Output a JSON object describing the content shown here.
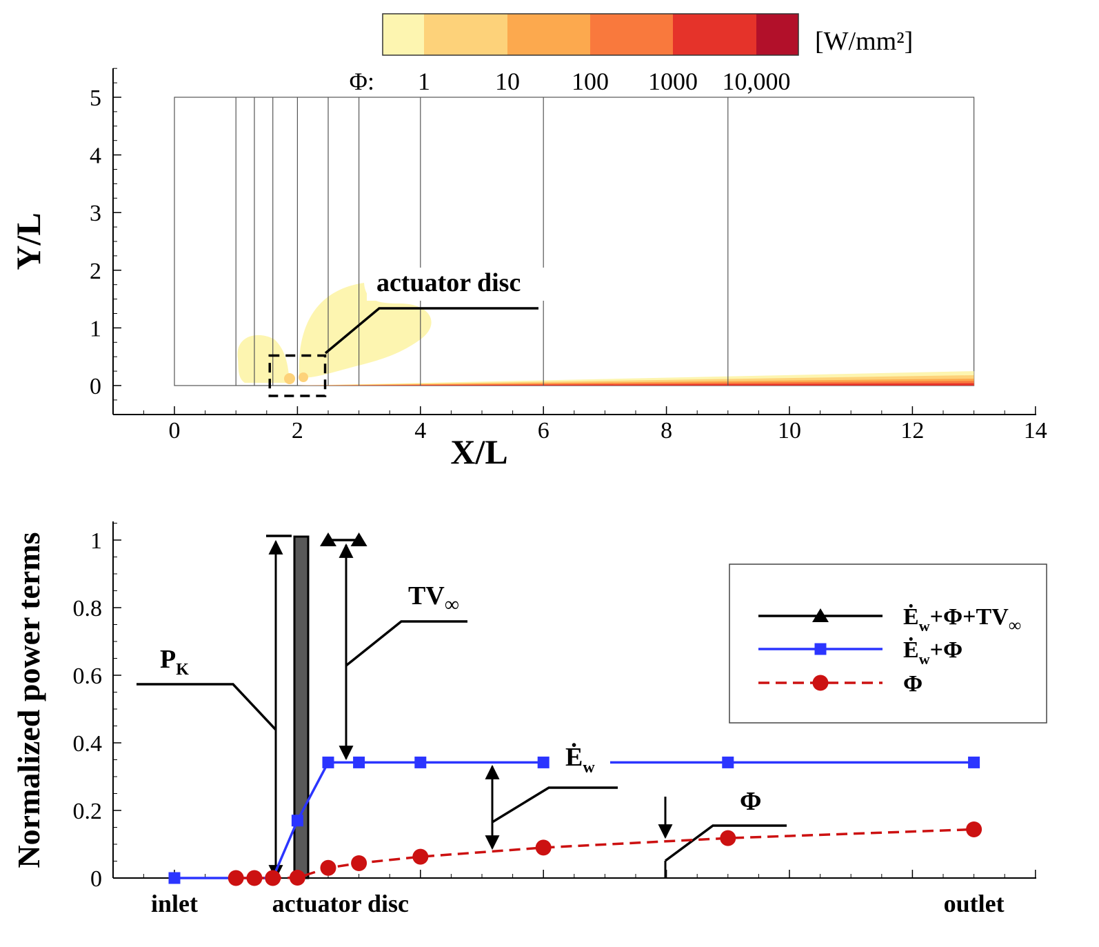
{
  "chart_data": [
    {
      "type": "heatmap",
      "title": "",
      "xlabel": "X/L",
      "ylabel": "Y/L",
      "xlim": [
        -1,
        14
      ],
      "ylim": [
        -0.5,
        5.5
      ],
      "xticks": [
        0,
        2,
        4,
        6,
        8,
        10,
        12,
        14
      ],
      "yticks": [
        0,
        1,
        2,
        3,
        4,
        5
      ],
      "domain": {
        "x": [
          0,
          13
        ],
        "y": [
          0,
          5
        ]
      },
      "stations_x": [
        1,
        1.3,
        1.6,
        2,
        2.5,
        3,
        4,
        6,
        9
      ],
      "colorbar": {
        "unit": "[W/mm²]",
        "prefix": "Φ:",
        "tick_labels": [
          "1",
          "10",
          "100",
          "1000",
          "10,000"
        ],
        "colors": [
          "#fdf5b0",
          "#fdd27a",
          "#fca94e",
          "#f9793d",
          "#e5332a",
          "#b2102a"
        ]
      },
      "annotation": "actuator disc",
      "actuator_box": {
        "x": [
          1.55,
          2.45
        ],
        "y": [
          -0.18,
          0.52
        ]
      }
    },
    {
      "type": "line",
      "xlabel": "",
      "ylabel": "Normalized power terms",
      "xlim": [
        -1,
        14
      ],
      "ylim": [
        0,
        1.05
      ],
      "yticks": [
        0,
        0.2,
        0.4,
        0.6,
        0.8,
        1
      ],
      "category_labels": [
        {
          "x": 0,
          "label": "inlet"
        },
        {
          "x": 2.7,
          "label": "actuator disc"
        },
        {
          "x": 13,
          "label": "outlet"
        }
      ],
      "series": [
        {
          "name": "Ė_w+Φ+TV∞",
          "marker": "triangle",
          "color": "#000000",
          "x": [
            2.5,
            3
          ],
          "y": [
            1,
            1
          ]
        },
        {
          "name": "Ė_w+Φ",
          "marker": "square",
          "color": "#2b35ff",
          "x": [
            0,
            1,
            1.3,
            1.6,
            2,
            2.5,
            3,
            4,
            6,
            9,
            13
          ],
          "y": [
            0,
            0,
            0,
            0,
            0.17,
            0.342,
            0.342,
            0.342,
            0.342,
            0.342,
            0.342
          ]
        },
        {
          "name": "Φ",
          "marker": "circle",
          "color": "#cc1111",
          "x": [
            1,
            1.3,
            1.6,
            2,
            2.5,
            3,
            4,
            6,
            9,
            13
          ],
          "y": [
            0,
            0,
            0,
            0.001,
            0.03,
            0.044,
            0.063,
            0.09,
            0.118,
            0.144
          ]
        }
      ],
      "annotations": [
        {
          "label": "P",
          "sub": "K"
        },
        {
          "label": "TV",
          "sub": "∞"
        },
        {
          "label": "Ė",
          "sub": "w"
        },
        {
          "label": "Φ",
          "sub": ""
        }
      ],
      "legend": {
        "placement": "top-right",
        "entries": [
          {
            "main": "Ė",
            "sub": "w",
            "rest": "+Φ+TV",
            "tail": "∞"
          },
          {
            "main": "Ė",
            "sub": "w",
            "rest": "+Φ",
            "tail": ""
          },
          {
            "main": "Φ",
            "sub": "",
            "rest": "",
            "tail": ""
          }
        ]
      }
    }
  ]
}
